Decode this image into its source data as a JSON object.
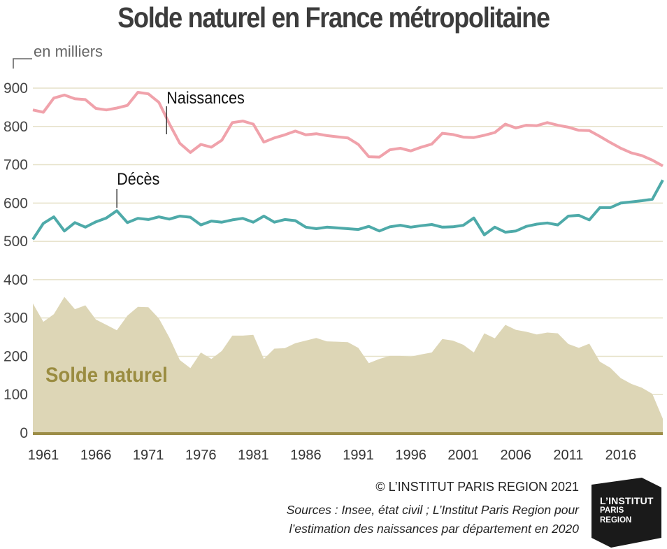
{
  "page": {
    "title": "Solde naturel en France métropolitaine",
    "unit_label": "en milliers",
    "copyright": "© L’INSTITUT PARIS REGION 2021",
    "sources_line1": "Sources :  Insee, état civil ; L’Institut Paris Region pour",
    "sources_line2": "l’estimation des naissances par département en 2020",
    "logo": {
      "line1": "L’INSTITUT",
      "line2": "PARIS",
      "line3": "REGION"
    }
  },
  "colors": {
    "naissances": "#f0a2ab",
    "deces": "#4eaaa9",
    "solde_fill": "#ddd6b6",
    "solde_label": "#9a8c40",
    "baseline": "#9c8d47",
    "grid": "#e6e1c8"
  },
  "chart_data": {
    "type": "line",
    "title": "Solde naturel en France métropolitaine",
    "ylabel": "en milliers",
    "ylim": [
      0,
      900
    ],
    "yticks": [
      0,
      100,
      200,
      300,
      400,
      500,
      600,
      700,
      800,
      900
    ],
    "xticks": [
      1961,
      1966,
      1971,
      1976,
      1981,
      1986,
      1991,
      1996,
      2001,
      2006,
      2011,
      2016
    ],
    "grid": true,
    "x": [
      1960,
      1961,
      1962,
      1963,
      1964,
      1965,
      1966,
      1967,
      1968,
      1969,
      1970,
      1971,
      1972,
      1973,
      1974,
      1975,
      1976,
      1977,
      1978,
      1979,
      1980,
      1981,
      1982,
      1983,
      1984,
      1985,
      1986,
      1987,
      1988,
      1989,
      1990,
      1991,
      1992,
      1993,
      1994,
      1995,
      1996,
      1997,
      1998,
      1999,
      2000,
      2001,
      2002,
      2003,
      2004,
      2005,
      2006,
      2007,
      2008,
      2009,
      2010,
      2011,
      2012,
      2013,
      2014,
      2015,
      2016,
      2017,
      2018,
      2019,
      2020
    ],
    "series": [
      {
        "name": "Naissances",
        "type": "line",
        "values": [
          843,
          837,
          874,
          882,
          872,
          870,
          847,
          843,
          848,
          855,
          889,
          885,
          863,
          807,
          756,
          732,
          753,
          746,
          764,
          810,
          814,
          806,
          759,
          770,
          778,
          788,
          778,
          781,
          776,
          773,
          770,
          753,
          721,
          720,
          739,
          743,
          736,
          746,
          754,
          782,
          779,
          772,
          771,
          777,
          784,
          806,
          796,
          803,
          802,
          810,
          803,
          798,
          790,
          789,
          774,
          758,
          743,
          731,
          724,
          712,
          697
        ],
        "labels": [
          {
            "text": "Naissances",
            "at_year": 1973
          }
        ]
      },
      {
        "name": "Décès",
        "type": "line",
        "values": [
          505,
          547,
          564,
          527,
          549,
          537,
          551,
          561,
          580,
          549,
          560,
          557,
          564,
          558,
          566,
          563,
          543,
          553,
          550,
          556,
          560,
          550,
          566,
          550,
          557,
          554,
          537,
          533,
          537,
          535,
          533,
          531,
          539,
          527,
          538,
          542,
          537,
          541,
          544,
          537,
          538,
          542,
          561,
          517,
          537,
          524,
          527,
          539,
          545,
          548,
          543,
          566,
          568,
          556,
          588,
          588,
          600,
          603,
          606,
          610,
          660
        ],
        "labels": [
          {
            "text": "Décès",
            "at_year": 1968
          }
        ]
      },
      {
        "name": "Solde naturel",
        "type": "area",
        "values": [
          338,
          290,
          310,
          355,
          323,
          333,
          296,
          282,
          268,
          306,
          329,
          328,
          299,
          249,
          190,
          169,
          210,
          193,
          214,
          254,
          254,
          256,
          193,
          220,
          221,
          234,
          241,
          248,
          239,
          238,
          237,
          222,
          182,
          193,
          201,
          201,
          199,
          205,
          210,
          245,
          241,
          230,
          210,
          260,
          247,
          282,
          269,
          264,
          257,
          262,
          260,
          232,
          222,
          233,
          186,
          170,
          143,
          128,
          118,
          102,
          37
        ],
        "labels": [
          {
            "text": "Solde naturel"
          }
        ]
      }
    ]
  }
}
